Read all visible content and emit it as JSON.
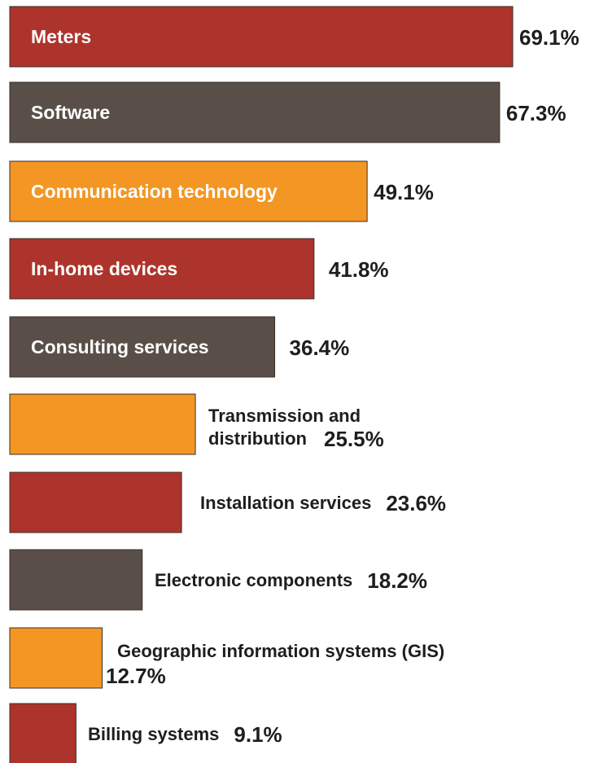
{
  "colors": {
    "red": "#ad342c",
    "gray": "#5a4f48",
    "orange": "#f39624",
    "bar_edge": "#3a2f2a",
    "text_dark": "#1e1e1e"
  },
  "chart_data": {
    "type": "bar",
    "orientation": "horizontal",
    "xlim": [
      0,
      70
    ],
    "grid": false,
    "legend": "none",
    "categories": [
      "Meters",
      "Software",
      "Communication technology",
      "In-home devices",
      "Consulting services",
      "Transmission and distribution",
      "Installation services",
      "Electronic components",
      "Geographic information systems (GIS)",
      "Billing systems"
    ],
    "values": [
      69.1,
      67.3,
      49.1,
      41.8,
      36.4,
      25.5,
      23.6,
      18.2,
      12.7,
      9.1
    ],
    "value_labels": [
      "69.1%",
      "67.3%",
      "49.1%",
      "41.8%",
      "36.4%",
      "25.5%",
      "23.6%",
      "18.2%",
      "12.7%",
      "9.1%"
    ],
    "bar_colors": [
      "red",
      "gray",
      "orange",
      "red",
      "gray",
      "orange",
      "red",
      "gray",
      "orange",
      "red"
    ]
  }
}
